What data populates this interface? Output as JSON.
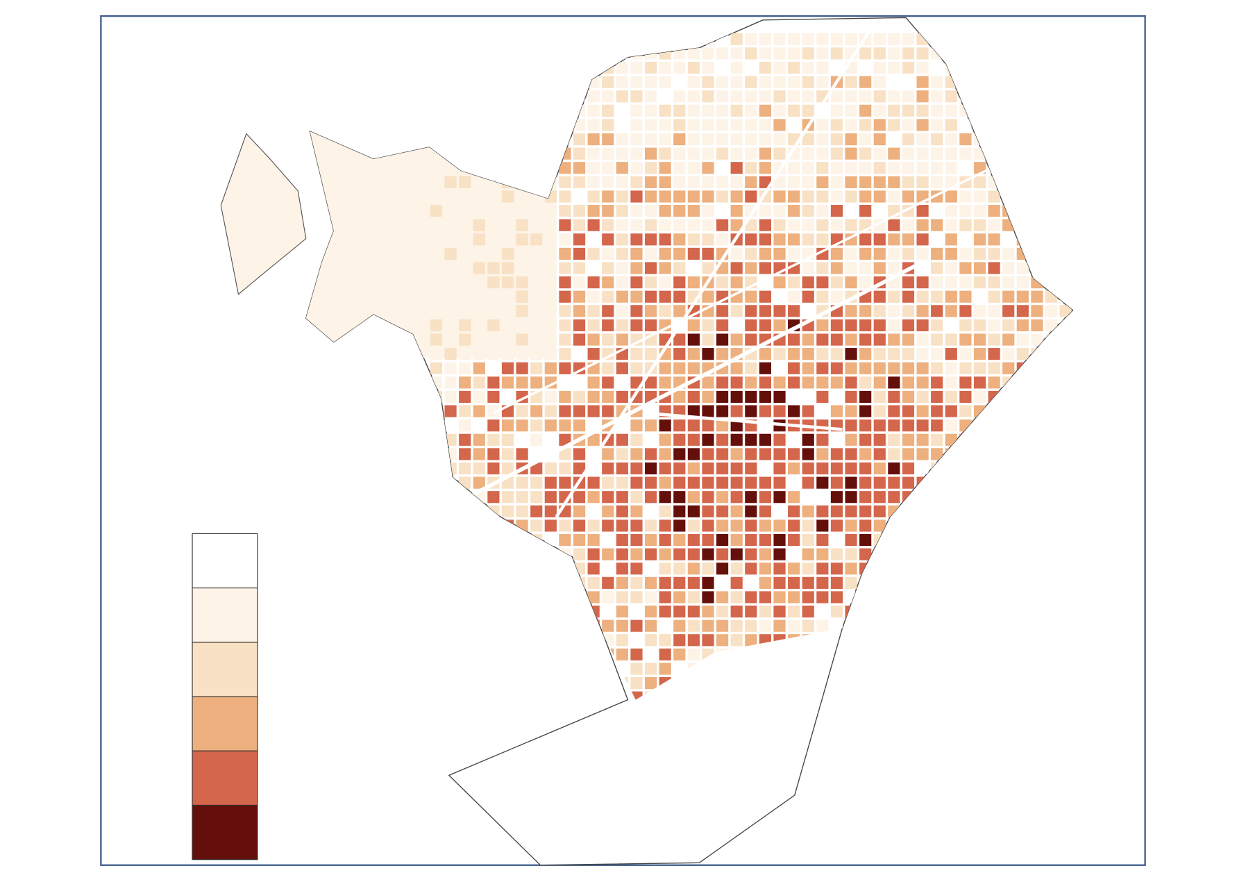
{
  "legend": {
    "colors": [
      "#ffffff",
      "#fdf3e7",
      "#f8e1c4",
      "#edb07e",
      "#d4664c",
      "#650f0b"
    ]
  }
}
